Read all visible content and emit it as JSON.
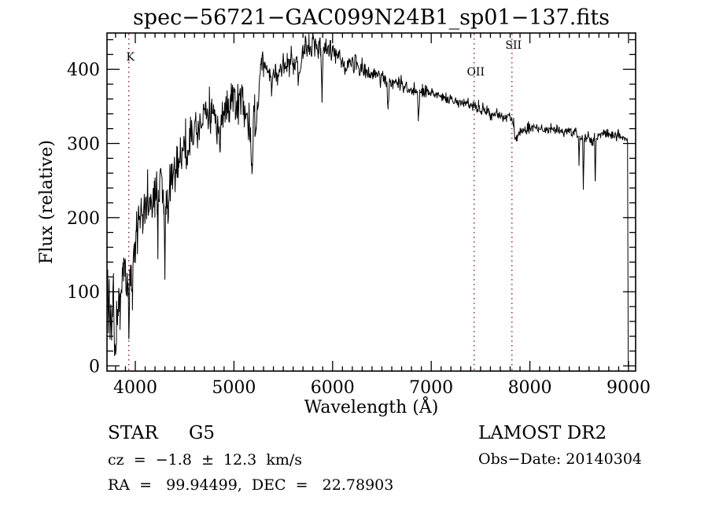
{
  "chart_data": {
    "type": "line",
    "title": "spec−56721−GAC099N24B1_sp01−137.fits",
    "xlabel": "Wavelength (Å)",
    "ylabel": "Flux (relative)",
    "xlim": [
      3713,
      9072
    ],
    "ylim": [
      -7,
      449
    ],
    "x_major_ticks": [
      4000,
      5000,
      6000,
      7000,
      8000,
      9000
    ],
    "x_minor_step": 100,
    "y_major_ticks": [
      0,
      100,
      200,
      300,
      400
    ],
    "y_minor_step": 20,
    "grid": false,
    "legend": "none",
    "axis_color": "#000000",
    "line_color": "#000000",
    "marker_line_color": "#8b2323",
    "spectral_lines": [
      {
        "label": "K",
        "wavelength": 3934,
        "label_flux": 412
      },
      {
        "label": "OII",
        "wavelength": 7435,
        "label_flux": 392
      },
      {
        "label": "SII",
        "wavelength": 7818,
        "label_flux": 428
      }
    ],
    "series": [
      {
        "name": "spectrum",
        "noise_seed": 20140304,
        "noise_sigma_regions": [
          [
            3713,
            4450,
            18
          ],
          [
            4450,
            5250,
            13
          ],
          [
            5250,
            5980,
            9
          ],
          [
            5980,
            6800,
            6
          ],
          [
            6800,
            7600,
            4.5
          ],
          [
            7600,
            8990,
            3.5
          ],
          [
            8990,
            8997,
            0
          ]
        ],
        "continuum": [
          [
            3713,
            75
          ],
          [
            3720,
            105
          ],
          [
            3728,
            60
          ],
          [
            3736,
            95
          ],
          [
            3744,
            50
          ],
          [
            3752,
            80
          ],
          [
            3760,
            42
          ],
          [
            3770,
            70
          ],
          [
            3780,
            88
          ],
          [
            3790,
            40
          ],
          [
            3800,
            32
          ],
          [
            3810,
            60
          ],
          [
            3820,
            55
          ],
          [
            3832,
            95
          ],
          [
            3845,
            88
          ],
          [
            3858,
            105
          ],
          [
            3870,
            120
          ],
          [
            3882,
            135
          ],
          [
            3895,
            140
          ],
          [
            3910,
            118
          ],
          [
            3920,
            108
          ],
          [
            3926,
            112
          ],
          [
            3934,
            45
          ],
          [
            3944,
            112
          ],
          [
            3952,
            125
          ],
          [
            3962,
            95
          ],
          [
            3970,
            88
          ],
          [
            3980,
            130
          ],
          [
            3990,
            150
          ],
          [
            4000,
            170
          ],
          [
            4010,
            188
          ],
          [
            4022,
            175
          ],
          [
            4034,
            200
          ],
          [
            4046,
            182
          ],
          [
            4060,
            210
          ],
          [
            4075,
            195
          ],
          [
            4090,
            215
          ],
          [
            4101,
            185
          ],
          [
            4112,
            218
          ],
          [
            4125,
            230
          ],
          [
            4140,
            210
          ],
          [
            4155,
            228
          ],
          [
            4170,
            215
          ],
          [
            4185,
            235
          ],
          [
            4200,
            222
          ],
          [
            4215,
            240
          ],
          [
            4222,
            205
          ],
          [
            4227,
            152
          ],
          [
            4233,
            215
          ],
          [
            4245,
            232
          ],
          [
            4260,
            245
          ],
          [
            4275,
            230
          ],
          [
            4290,
            235
          ],
          [
            4300,
            128
          ],
          [
            4312,
            228
          ],
          [
            4325,
            245
          ],
          [
            4336,
            218
          ],
          [
            4350,
            260
          ],
          [
            4365,
            275
          ],
          [
            4380,
            262
          ],
          [
            4395,
            278
          ],
          [
            4410,
            252
          ],
          [
            4425,
            280
          ],
          [
            4440,
            268
          ],
          [
            4455,
            288
          ],
          [
            4470,
            272
          ],
          [
            4490,
            295
          ],
          [
            4510,
            300
          ],
          [
            4530,
            288
          ],
          [
            4550,
            308
          ],
          [
            4570,
            318
          ],
          [
            4590,
            305
          ],
          [
            4610,
            322
          ],
          [
            4630,
            312
          ],
          [
            4650,
            330
          ],
          [
            4670,
            318
          ],
          [
            4690,
            338
          ],
          [
            4710,
            345
          ],
          [
            4730,
            332
          ],
          [
            4750,
            348
          ],
          [
            4770,
            340
          ],
          [
            4790,
            330
          ],
          [
            4810,
            338
          ],
          [
            4830,
            318
          ],
          [
            4852,
            322
          ],
          [
            4861,
            284
          ],
          [
            4872,
            326
          ],
          [
            4890,
            342
          ],
          [
            4910,
            352
          ],
          [
            4930,
            345
          ],
          [
            4950,
            358
          ],
          [
            4970,
            362
          ],
          [
            4990,
            355
          ],
          [
            5010,
            360
          ],
          [
            5030,
            352
          ],
          [
            5050,
            358
          ],
          [
            5070,
            348
          ],
          [
            5090,
            352
          ],
          [
            5110,
            342
          ],
          [
            5130,
            338
          ],
          [
            5150,
            330
          ],
          [
            5168,
            322
          ],
          [
            5180,
            252
          ],
          [
            5195,
            322
          ],
          [
            5210,
            338
          ],
          [
            5225,
            310
          ],
          [
            5240,
            355
          ],
          [
            5255,
            380
          ],
          [
            5270,
            405
          ],
          [
            5285,
            418
          ],
          [
            5300,
            400
          ],
          [
            5320,
            408
          ],
          [
            5340,
            388
          ],
          [
            5360,
            395
          ],
          [
            5380,
            372
          ],
          [
            5400,
            392
          ],
          [
            5420,
            400
          ],
          [
            5440,
            388
          ],
          [
            5460,
            402
          ],
          [
            5480,
            395
          ],
          [
            5500,
            408
          ],
          [
            5520,
            400
          ],
          [
            5540,
            412
          ],
          [
            5560,
            405
          ],
          [
            5580,
            415
          ],
          [
            5600,
            408
          ],
          [
            5620,
            400
          ],
          [
            5640,
            418
          ],
          [
            5660,
            385
          ],
          [
            5680,
            412
          ],
          [
            5700,
            422
          ],
          [
            5720,
            430
          ],
          [
            5740,
            425
          ],
          [
            5760,
            435
          ],
          [
            5780,
            428
          ],
          [
            5800,
            438
          ],
          [
            5820,
            430
          ],
          [
            5840,
            435
          ],
          [
            5860,
            428
          ],
          [
            5880,
            430
          ],
          [
            5893,
            345
          ],
          [
            5906,
            426
          ],
          [
            5920,
            430
          ],
          [
            5940,
            425
          ],
          [
            5960,
            428
          ],
          [
            5980,
            422
          ],
          [
            6000,
            425
          ],
          [
            6030,
            418
          ],
          [
            6060,
            420
          ],
          [
            6090,
            412
          ],
          [
            6120,
            398
          ],
          [
            6150,
            408
          ],
          [
            6180,
            412
          ],
          [
            6210,
            405
          ],
          [
            6240,
            408
          ],
          [
            6270,
            400
          ],
          [
            6300,
            402
          ],
          [
            6330,
            398
          ],
          [
            6360,
            396
          ],
          [
            6390,
            393
          ],
          [
            6420,
            395
          ],
          [
            6450,
            390
          ],
          [
            6480,
            392
          ],
          [
            6510,
            386
          ],
          [
            6540,
            384
          ],
          [
            6563,
            358
          ],
          [
            6578,
            383
          ],
          [
            6610,
            385
          ],
          [
            6640,
            380
          ],
          [
            6670,
            382
          ],
          [
            6700,
            378
          ],
          [
            6730,
            376
          ],
          [
            6760,
            375
          ],
          [
            6790,
            373
          ],
          [
            6820,
            372
          ],
          [
            6845,
            370
          ],
          [
            6860,
            372
          ],
          [
            6870,
            337
          ],
          [
            6884,
            368
          ],
          [
            6910,
            372
          ],
          [
            6940,
            370
          ],
          [
            6970,
            367
          ],
          [
            7000,
            368
          ],
          [
            7030,
            365
          ],
          [
            7060,
            366
          ],
          [
            7090,
            364
          ],
          [
            7120,
            362
          ],
          [
            7150,
            362
          ],
          [
            7180,
            359
          ],
          [
            7210,
            358
          ],
          [
            7240,
            357
          ],
          [
            7270,
            356
          ],
          [
            7300,
            354
          ],
          [
            7330,
            353
          ],
          [
            7360,
            352
          ],
          [
            7390,
            350
          ],
          [
            7420,
            350
          ],
          [
            7450,
            349
          ],
          [
            7480,
            348
          ],
          [
            7510,
            346
          ],
          [
            7540,
            345
          ],
          [
            7570,
            344
          ],
          [
            7590,
            343
          ],
          [
            7600,
            336
          ],
          [
            7615,
            340
          ],
          [
            7640,
            341
          ],
          [
            7665,
            340
          ],
          [
            7690,
            339
          ],
          [
            7715,
            338
          ],
          [
            7740,
            337
          ],
          [
            7765,
            336
          ],
          [
            7790,
            335
          ],
          [
            7815,
            332
          ],
          [
            7835,
            328
          ],
          [
            7850,
            303
          ],
          [
            7865,
            308
          ],
          [
            7880,
            312
          ],
          [
            7900,
            314
          ],
          [
            7925,
            316
          ],
          [
            7950,
            318
          ],
          [
            7975,
            320
          ],
          [
            8000,
            322
          ],
          [
            8030,
            323
          ],
          [
            8060,
            322
          ],
          [
            8090,
            321
          ],
          [
            8120,
            320
          ],
          [
            8150,
            319
          ],
          [
            8180,
            318
          ],
          [
            8210,
            319
          ],
          [
            8240,
            318
          ],
          [
            8270,
            318
          ],
          [
            8300,
            317
          ],
          [
            8330,
            317
          ],
          [
            8360,
            316
          ],
          [
            8390,
            317
          ],
          [
            8420,
            315
          ],
          [
            8450,
            314
          ],
          [
            8475,
            313
          ],
          [
            8490,
            310
          ],
          [
            8498,
            272
          ],
          [
            8507,
            308
          ],
          [
            8520,
            306
          ],
          [
            8535,
            305
          ],
          [
            8542,
            238
          ],
          [
            8552,
            303
          ],
          [
            8570,
            308
          ],
          [
            8590,
            310
          ],
          [
            8610,
            305
          ],
          [
            8630,
            300
          ],
          [
            8645,
            305
          ],
          [
            8655,
            308
          ],
          [
            8662,
            252
          ],
          [
            8672,
            305
          ],
          [
            8690,
            308
          ],
          [
            8715,
            310
          ],
          [
            8740,
            312
          ],
          [
            8765,
            313
          ],
          [
            8790,
            314
          ],
          [
            8815,
            312
          ],
          [
            8840,
            311
          ],
          [
            8865,
            310
          ],
          [
            8890,
            311
          ],
          [
            8915,
            309
          ],
          [
            8940,
            308
          ],
          [
            8965,
            307
          ],
          [
            8990,
            306
          ],
          [
            8997,
            0
          ]
        ]
      }
    ]
  },
  "footer": {
    "object_type": "STAR",
    "subclass": "G5",
    "survey": "LAMOST DR2",
    "cz_line": "cz  =  −1.8  ±  12.3  km/s",
    "obs_date_line": "Obs−Date: 20140304",
    "ra_dec_line": "RA  =   99.94499,  DEC  =   22.78903"
  }
}
